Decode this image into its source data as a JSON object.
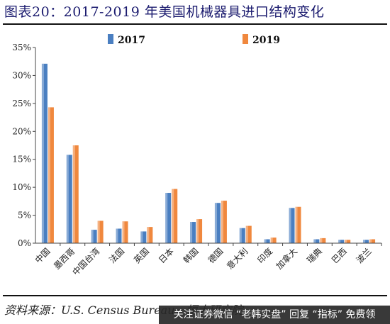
{
  "title": "图表20：2017-2019 年美国机械器具进口结构变化",
  "source": "资料来源：U.S. Census Bureau，恒大研究院",
  "banner": "关注证券微信 “老韩实盘” 回复 “指标” 免费领",
  "colors": {
    "s2017": "#4a7fc1",
    "s2019": "#f0883e",
    "title": "#1a1a6e"
  },
  "chart_data": {
    "type": "bar",
    "categories": [
      "中国",
      "墨西哥",
      "中国台湾",
      "法国",
      "英国",
      "日本",
      "韩国",
      "德国",
      "意大利",
      "印度",
      "加拿大",
      "瑞典",
      "巴西",
      "波兰"
    ],
    "series": [
      {
        "name": "2017",
        "values": [
          32.1,
          15.8,
          2.4,
          2.6,
          2.1,
          9.0,
          3.8,
          7.2,
          2.7,
          0.7,
          6.3,
          0.7,
          0.6,
          0.6
        ]
      },
      {
        "name": "2019",
        "values": [
          24.3,
          17.5,
          4.0,
          3.9,
          2.9,
          9.7,
          4.3,
          7.6,
          3.1,
          1.0,
          6.5,
          0.9,
          0.6,
          0.7
        ]
      }
    ],
    "yticks": [
      "0%",
      "5%",
      "10%",
      "15%",
      "20%",
      "25%",
      "30%",
      "35%"
    ],
    "ylim": [
      0,
      35
    ],
    "legend_position": "top",
    "grid": false
  }
}
